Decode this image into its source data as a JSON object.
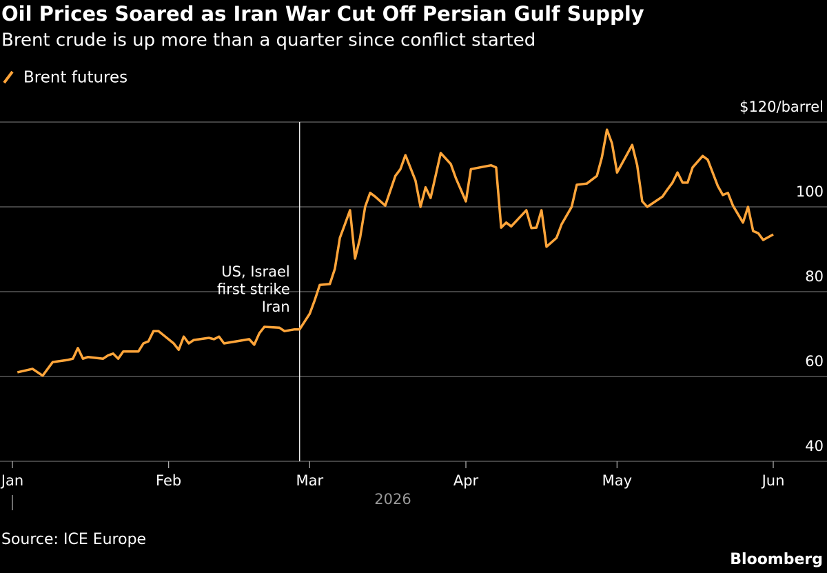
{
  "chart_data": {
    "type": "line",
    "title": "Oil Prices Soared as Iran War Cut Off Persian Gulf Supply",
    "subtitle": "Brent crude is up more than a quarter since conflict started",
    "x": [
      "2026-01-02",
      "2026-01-05",
      "2026-01-07",
      "2026-01-09",
      "2026-01-12",
      "2026-01-13",
      "2026-01-14",
      "2026-01-15",
      "2026-01-16",
      "2026-01-19",
      "2026-01-20",
      "2026-01-21",
      "2026-01-22",
      "2026-01-23",
      "2026-01-26",
      "2026-01-27",
      "2026-01-28",
      "2026-01-29",
      "2026-01-30",
      "2026-02-02",
      "2026-02-03",
      "2026-02-04",
      "2026-02-05",
      "2026-02-06",
      "2026-02-09",
      "2026-02-10",
      "2026-02-11",
      "2026-02-12",
      "2026-02-16",
      "2026-02-17",
      "2026-02-18",
      "2026-02-19",
      "2026-02-20",
      "2026-02-23",
      "2026-02-24",
      "2026-02-26",
      "2026-02-27",
      "2026-03-01",
      "2026-03-02",
      "2026-03-03",
      "2026-03-05",
      "2026-03-06",
      "2026-03-07",
      "2026-03-08",
      "2026-03-09",
      "2026-03-10",
      "2026-03-11",
      "2026-03-12",
      "2026-03-13",
      "2026-03-14",
      "2026-03-16",
      "2026-03-18",
      "2026-03-19",
      "2026-03-20",
      "2026-03-22",
      "2026-03-23",
      "2026-03-24",
      "2026-03-25",
      "2026-03-27",
      "2026-03-29",
      "2026-03-30",
      "2026-04-01",
      "2026-04-02",
      "2026-04-06",
      "2026-04-07",
      "2026-04-08",
      "2026-04-09",
      "2026-04-10",
      "2026-04-13",
      "2026-04-14",
      "2026-04-15",
      "2026-04-16",
      "2026-04-17",
      "2026-04-19",
      "2026-04-20",
      "2026-04-22",
      "2026-04-23",
      "2026-04-25",
      "2026-04-27",
      "2026-04-28",
      "2026-04-29",
      "2026-04-30",
      "2026-05-01",
      "2026-05-04",
      "2026-05-05",
      "2026-05-06",
      "2026-05-07",
      "2026-05-10",
      "2026-05-11",
      "2026-05-12",
      "2026-05-13",
      "2026-05-14",
      "2026-05-15",
      "2026-05-16",
      "2026-05-18",
      "2026-05-19",
      "2026-05-21",
      "2026-05-22",
      "2026-05-23",
      "2026-05-24",
      "2026-05-26",
      "2026-05-27",
      "2026-05-28",
      "2026-05-29",
      "2026-05-30",
      "2026-06-01"
    ],
    "series": [
      {
        "name": "Brent futures",
        "color": "#ffa53a",
        "values": [
          61.0,
          61.8,
          60.2,
          63.4,
          63.9,
          64.2,
          66.7,
          64.2,
          64.6,
          64.2,
          65.0,
          65.4,
          64.2,
          65.9,
          65.9,
          67.8,
          68.3,
          70.7,
          70.7,
          67.8,
          66.3,
          69.4,
          67.8,
          68.6,
          69.1,
          68.8,
          69.4,
          67.8,
          68.6,
          68.8,
          67.5,
          70.2,
          71.7,
          71.5,
          70.7,
          71.1,
          71.1,
          74.8,
          78.0,
          81.6,
          81.8,
          85.4,
          92.7,
          95.9,
          99.2,
          87.8,
          92.7,
          100.0,
          103.3,
          102.4,
          100.3,
          107.3,
          108.9,
          112.2,
          106.2,
          100.0,
          104.6,
          102.1,
          112.7,
          110.1,
          106.8,
          101.3,
          108.9,
          109.8,
          109.3,
          95.1,
          96.3,
          95.4,
          99.2,
          95.0,
          95.1,
          99.2,
          90.6,
          92.7,
          95.9,
          100.0,
          105.2,
          105.5,
          107.3,
          111.7,
          118.2,
          115.0,
          108.1,
          114.6,
          109.8,
          101.3,
          100.0,
          102.4,
          104.1,
          105.7,
          108.1,
          105.7,
          105.7,
          109.3,
          112.0,
          111.1,
          104.9,
          102.8,
          103.3,
          100.3,
          96.3,
          100.0,
          94.3,
          93.8,
          92.2,
          93.5
        ]
      }
    ],
    "xlim": [
      "2026-01-01",
      "2026-06-01"
    ],
    "xticks": [
      {
        "value": "2026-01-01",
        "label": "Jan"
      },
      {
        "value": "2026-02-01",
        "label": "Feb"
      },
      {
        "value": "2026-03-01",
        "label": "Mar"
      },
      {
        "value": "2026-04-01",
        "label": "Apr"
      },
      {
        "value": "2026-05-01",
        "label": "May"
      },
      {
        "value": "2026-06-01",
        "label": "Jun"
      }
    ],
    "xlabel": "2026",
    "ylim": [
      40,
      120
    ],
    "yticks": [
      40,
      60,
      80,
      100,
      {
        "value": 120,
        "label": "$120/barrel"
      }
    ],
    "grid": true,
    "annotation": {
      "x": "2026-02-27",
      "lines": [
        "US, Israel",
        "first strike",
        "Iran"
      ]
    },
    "source": "Source: ICE Europe",
    "logo": "Bloomberg"
  }
}
